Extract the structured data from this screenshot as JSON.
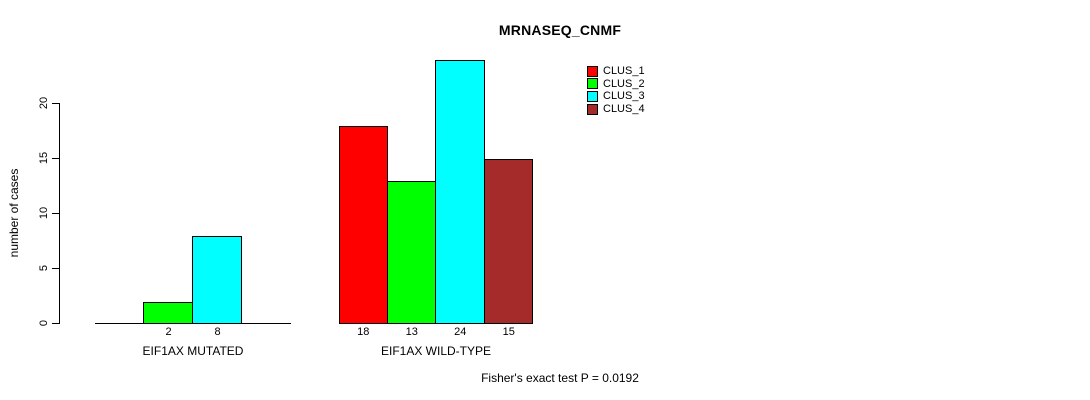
{
  "title": "MRNASEQ_CNMF",
  "y_axis": {
    "label": "number of cases",
    "ticks": [
      0,
      5,
      10,
      15,
      20
    ]
  },
  "footer": "Fisher's exact test P = 0.0192",
  "legend": {
    "items": [
      {
        "label": "CLUS_1",
        "color": "#ff0000"
      },
      {
        "label": "CLUS_2",
        "color": "#00ff00"
      },
      {
        "label": "CLUS_3",
        "color": "#00ffff"
      },
      {
        "label": "CLUS_4",
        "color": "#a52a2a"
      }
    ]
  },
  "chart_data": {
    "type": "bar",
    "title": "MRNASEQ_CNMF",
    "ylabel": "number of cases",
    "xlabel": "",
    "ylim": [
      0,
      24
    ],
    "yticks": [
      0,
      5,
      10,
      15,
      20
    ],
    "grid": false,
    "legend_position": "top-right",
    "series": [
      "CLUS_1",
      "CLUS_2",
      "CLUS_3",
      "CLUS_4"
    ],
    "series_colors": [
      "#ff0000",
      "#00ff00",
      "#00ffff",
      "#a52a2a"
    ],
    "groups": [
      {
        "label": "EIF1AX MUTATED",
        "values": [
          0,
          2,
          8,
          0
        ],
        "bar_labels": [
          "",
          "2",
          "8",
          ""
        ]
      },
      {
        "label": "EIF1AX WILD-TYPE",
        "values": [
          18,
          13,
          24,
          15
        ],
        "bar_labels": [
          "18",
          "13",
          "24",
          "15"
        ]
      }
    ],
    "annotation": "Fisher's exact test P = 0.0192"
  }
}
